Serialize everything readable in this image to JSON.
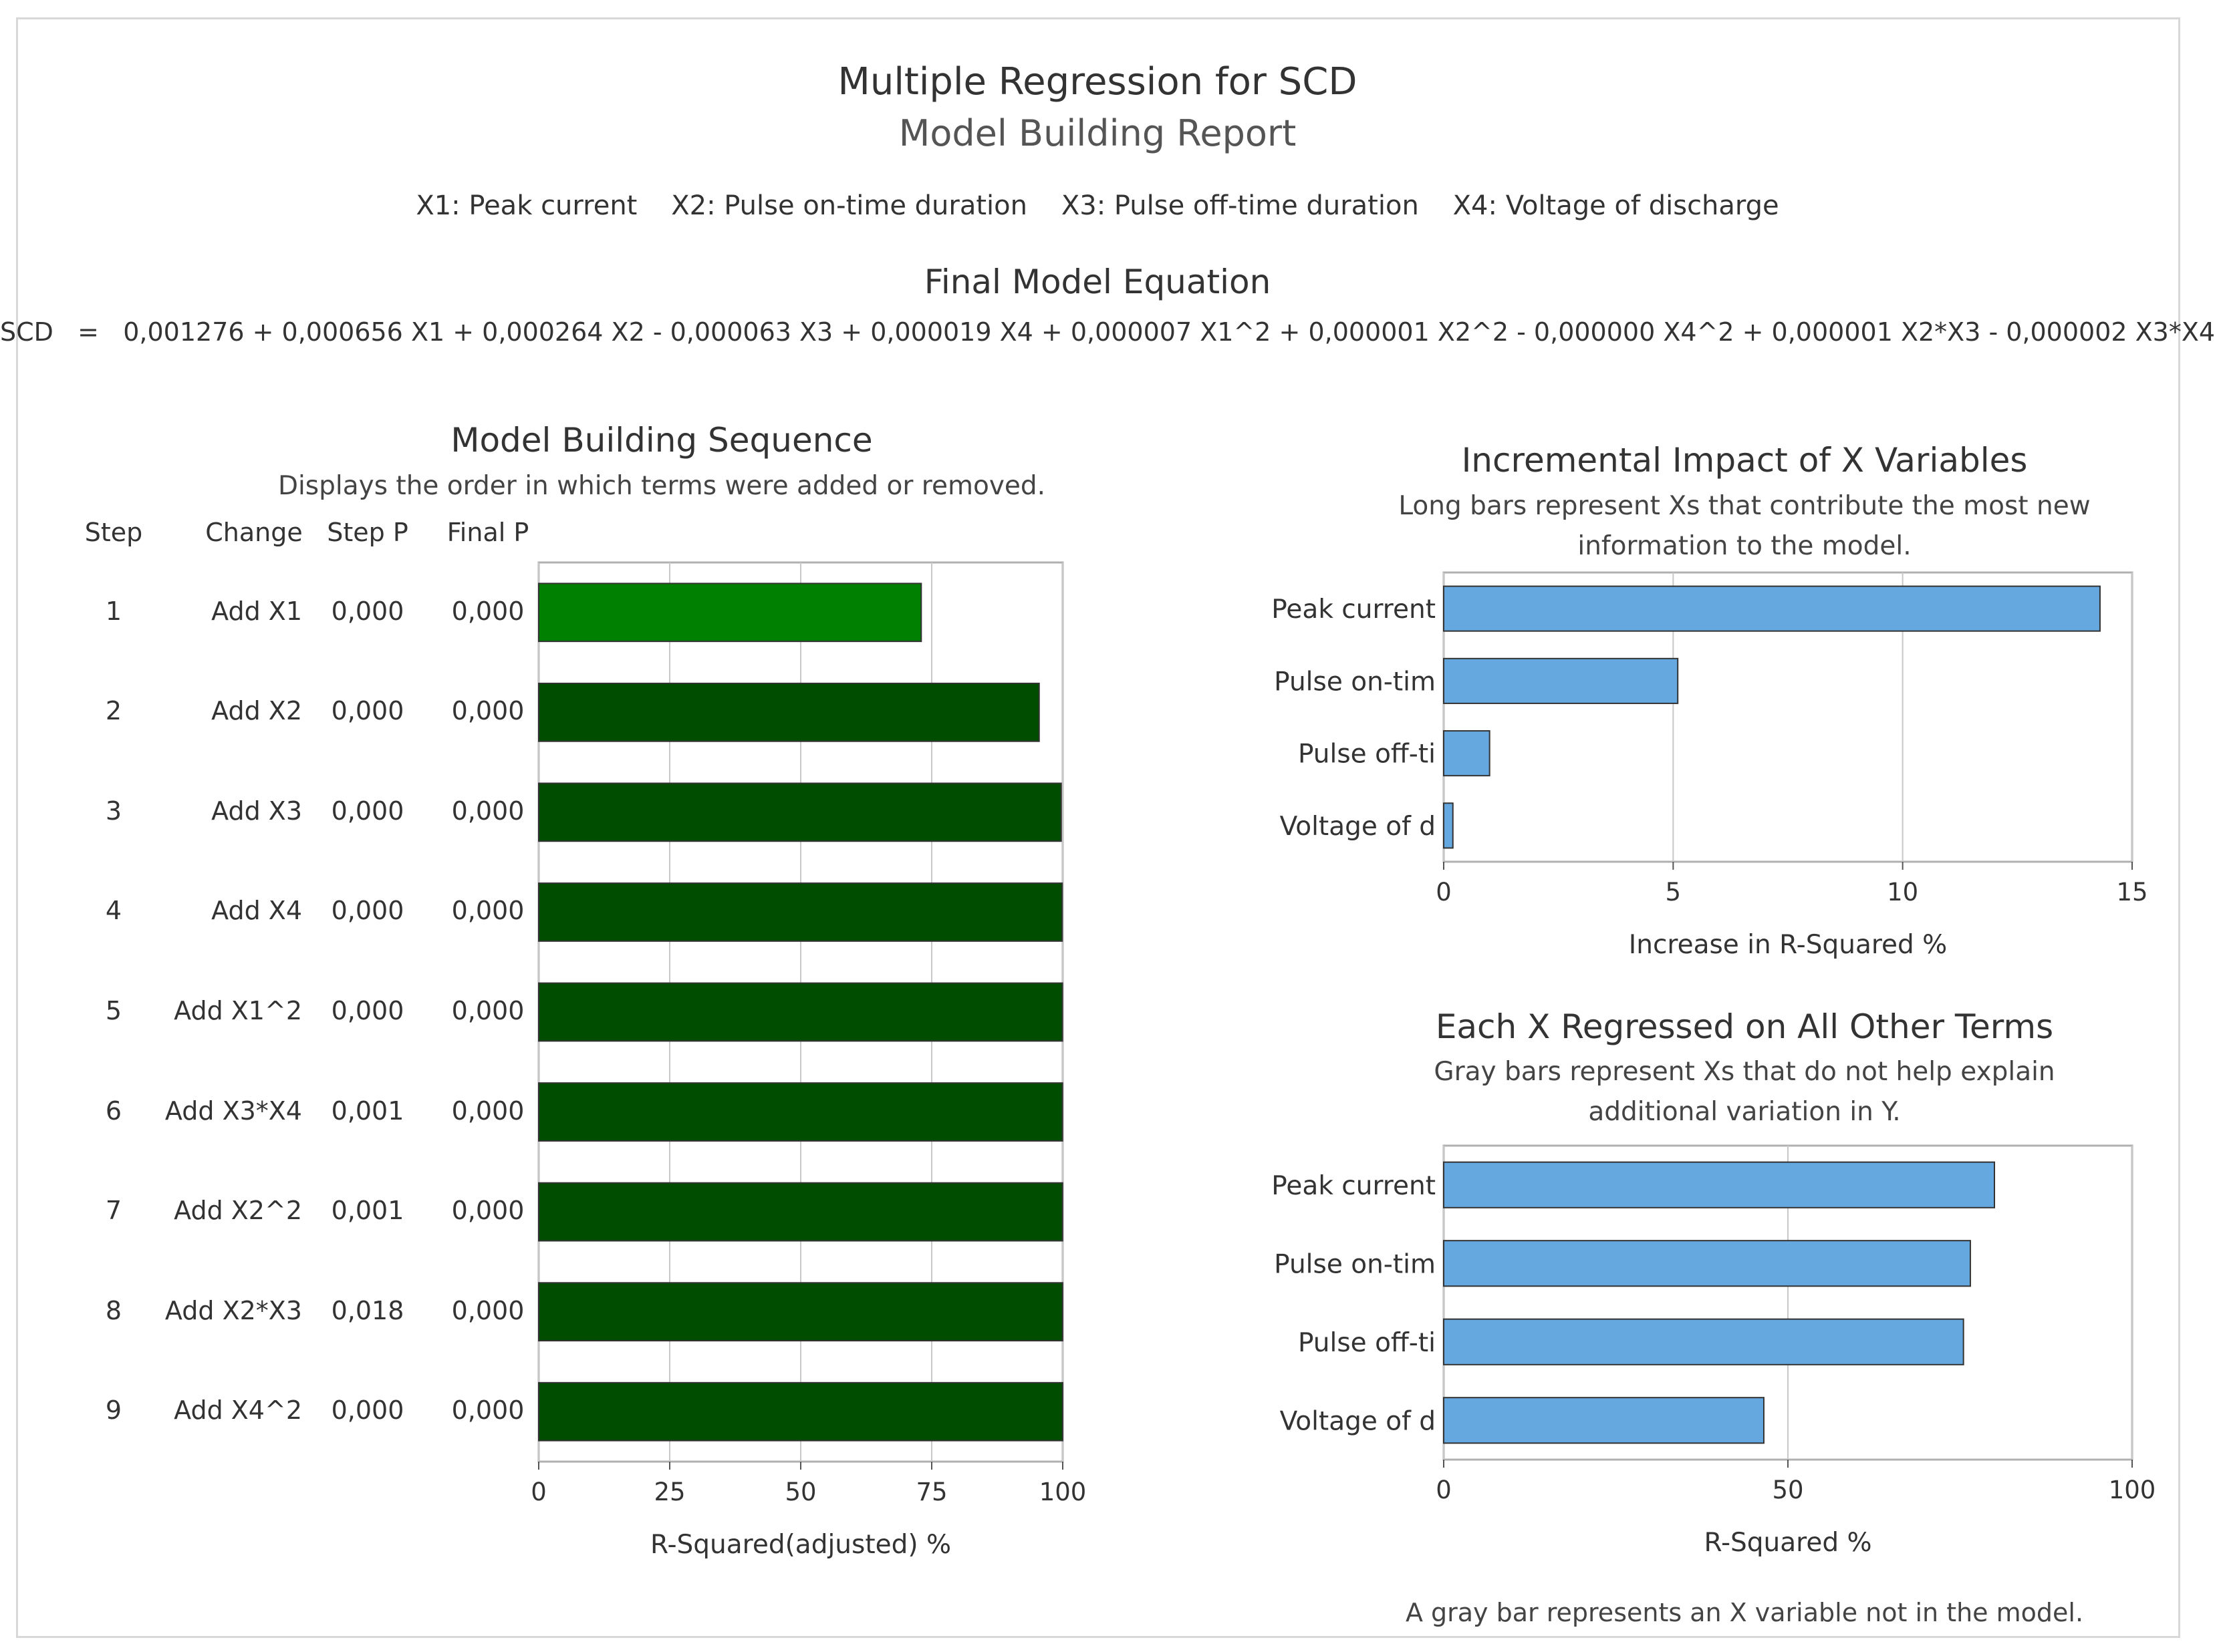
{
  "report": {
    "title": "Multiple Regression for SCD",
    "subtitle": "Model Building Report",
    "variables": "X1: Peak current    X2: Pulse on-time duration    X3: Pulse off-time duration    X4: Voltage of discharge",
    "equation_title": "Final Model Equation",
    "equation": "SCD   =   0,001276 + 0,000656 X1 + 0,000264 X2 - 0,000063 X3 + 0,000019 X4 + 0,000007 X1^2 + 0,000001 X2^2 - 0,000000 X4^2 + 0,000001 X2*X3 - 0,000002 X3*X4",
    "footnote": "A gray bar represents an X variable not in the model."
  },
  "colors": {
    "first_step_bar": "#008000",
    "step_bar": "#004d00",
    "x_bar": "#65a8df",
    "bar_outline": "#333333",
    "grid": "#c8c8c8"
  },
  "sequence": {
    "title": "Model Building Sequence",
    "subtitle": "Displays the order in which terms were added or removed.",
    "headers": {
      "step": "Step",
      "change": "Change",
      "step_p": "Step P",
      "final_p": "Final P"
    },
    "rows": [
      {
        "step": "1",
        "change": "Add X1",
        "step_p": "0,000",
        "final_p": "0,000"
      },
      {
        "step": "2",
        "change": "Add X2",
        "step_p": "0,000",
        "final_p": "0,000"
      },
      {
        "step": "3",
        "change": "Add X3",
        "step_p": "0,000",
        "final_p": "0,000"
      },
      {
        "step": "4",
        "change": "Add X4",
        "step_p": "0,000",
        "final_p": "0,000"
      },
      {
        "step": "5",
        "change": "Add X1^2",
        "step_p": "0,000",
        "final_p": "0,000"
      },
      {
        "step": "6",
        "change": "Add X3*X4",
        "step_p": "0,001",
        "final_p": "0,000"
      },
      {
        "step": "7",
        "change": "Add X2^2",
        "step_p": "0,001",
        "final_p": "0,000"
      },
      {
        "step": "8",
        "change": "Add X2*X3",
        "step_p": "0,018",
        "final_p": "0,000"
      },
      {
        "step": "9",
        "change": "Add X4^2",
        "step_p": "0,000",
        "final_p": "0,000"
      }
    ]
  },
  "chart_data": [
    {
      "type": "bar",
      "orientation": "horizontal",
      "title": "Model Building Sequence",
      "categories": [
        "1",
        "2",
        "3",
        "4",
        "5",
        "6",
        "7",
        "8",
        "9"
      ],
      "values": [
        73,
        95.5,
        99.7,
        99.9,
        99.95,
        99.96,
        99.97,
        99.98,
        99.99
      ],
      "xlabel": "R-Squared(adjusted) %",
      "xlim": [
        0,
        100
      ],
      "ticks": [
        "0",
        "25",
        "50",
        "75",
        "100"
      ],
      "grid": true
    },
    {
      "type": "bar",
      "orientation": "horizontal",
      "title": "Incremental Impact of X Variables",
      "subtitle": [
        "Long bars represent Xs that contribute the most new",
        "information to the model."
      ],
      "categories": [
        "Peak current",
        "Pulse on-tim",
        "Pulse off-ti",
        "Voltage of d"
      ],
      "values": [
        14.3,
        5.1,
        1.0,
        0.2
      ],
      "xlabel": "Increase in R-Squared %",
      "xlim": [
        0,
        15
      ],
      "ticks": [
        "0",
        "5",
        "10",
        "15"
      ],
      "grid": true
    },
    {
      "type": "bar",
      "orientation": "horizontal",
      "title": "Each X Regressed on All Other Terms",
      "subtitle": [
        "Gray bars represent Xs that do not help explain",
        "additional variation in Y."
      ],
      "categories": [
        "Peak current",
        "Pulse on-tim",
        "Pulse off-ti",
        "Voltage of d"
      ],
      "values": [
        80,
        76.5,
        75.5,
        46.5
      ],
      "xlabel": "R-Squared %",
      "xlim": [
        0,
        100
      ],
      "ticks": [
        "0",
        "50",
        "100"
      ],
      "grid": true
    }
  ]
}
